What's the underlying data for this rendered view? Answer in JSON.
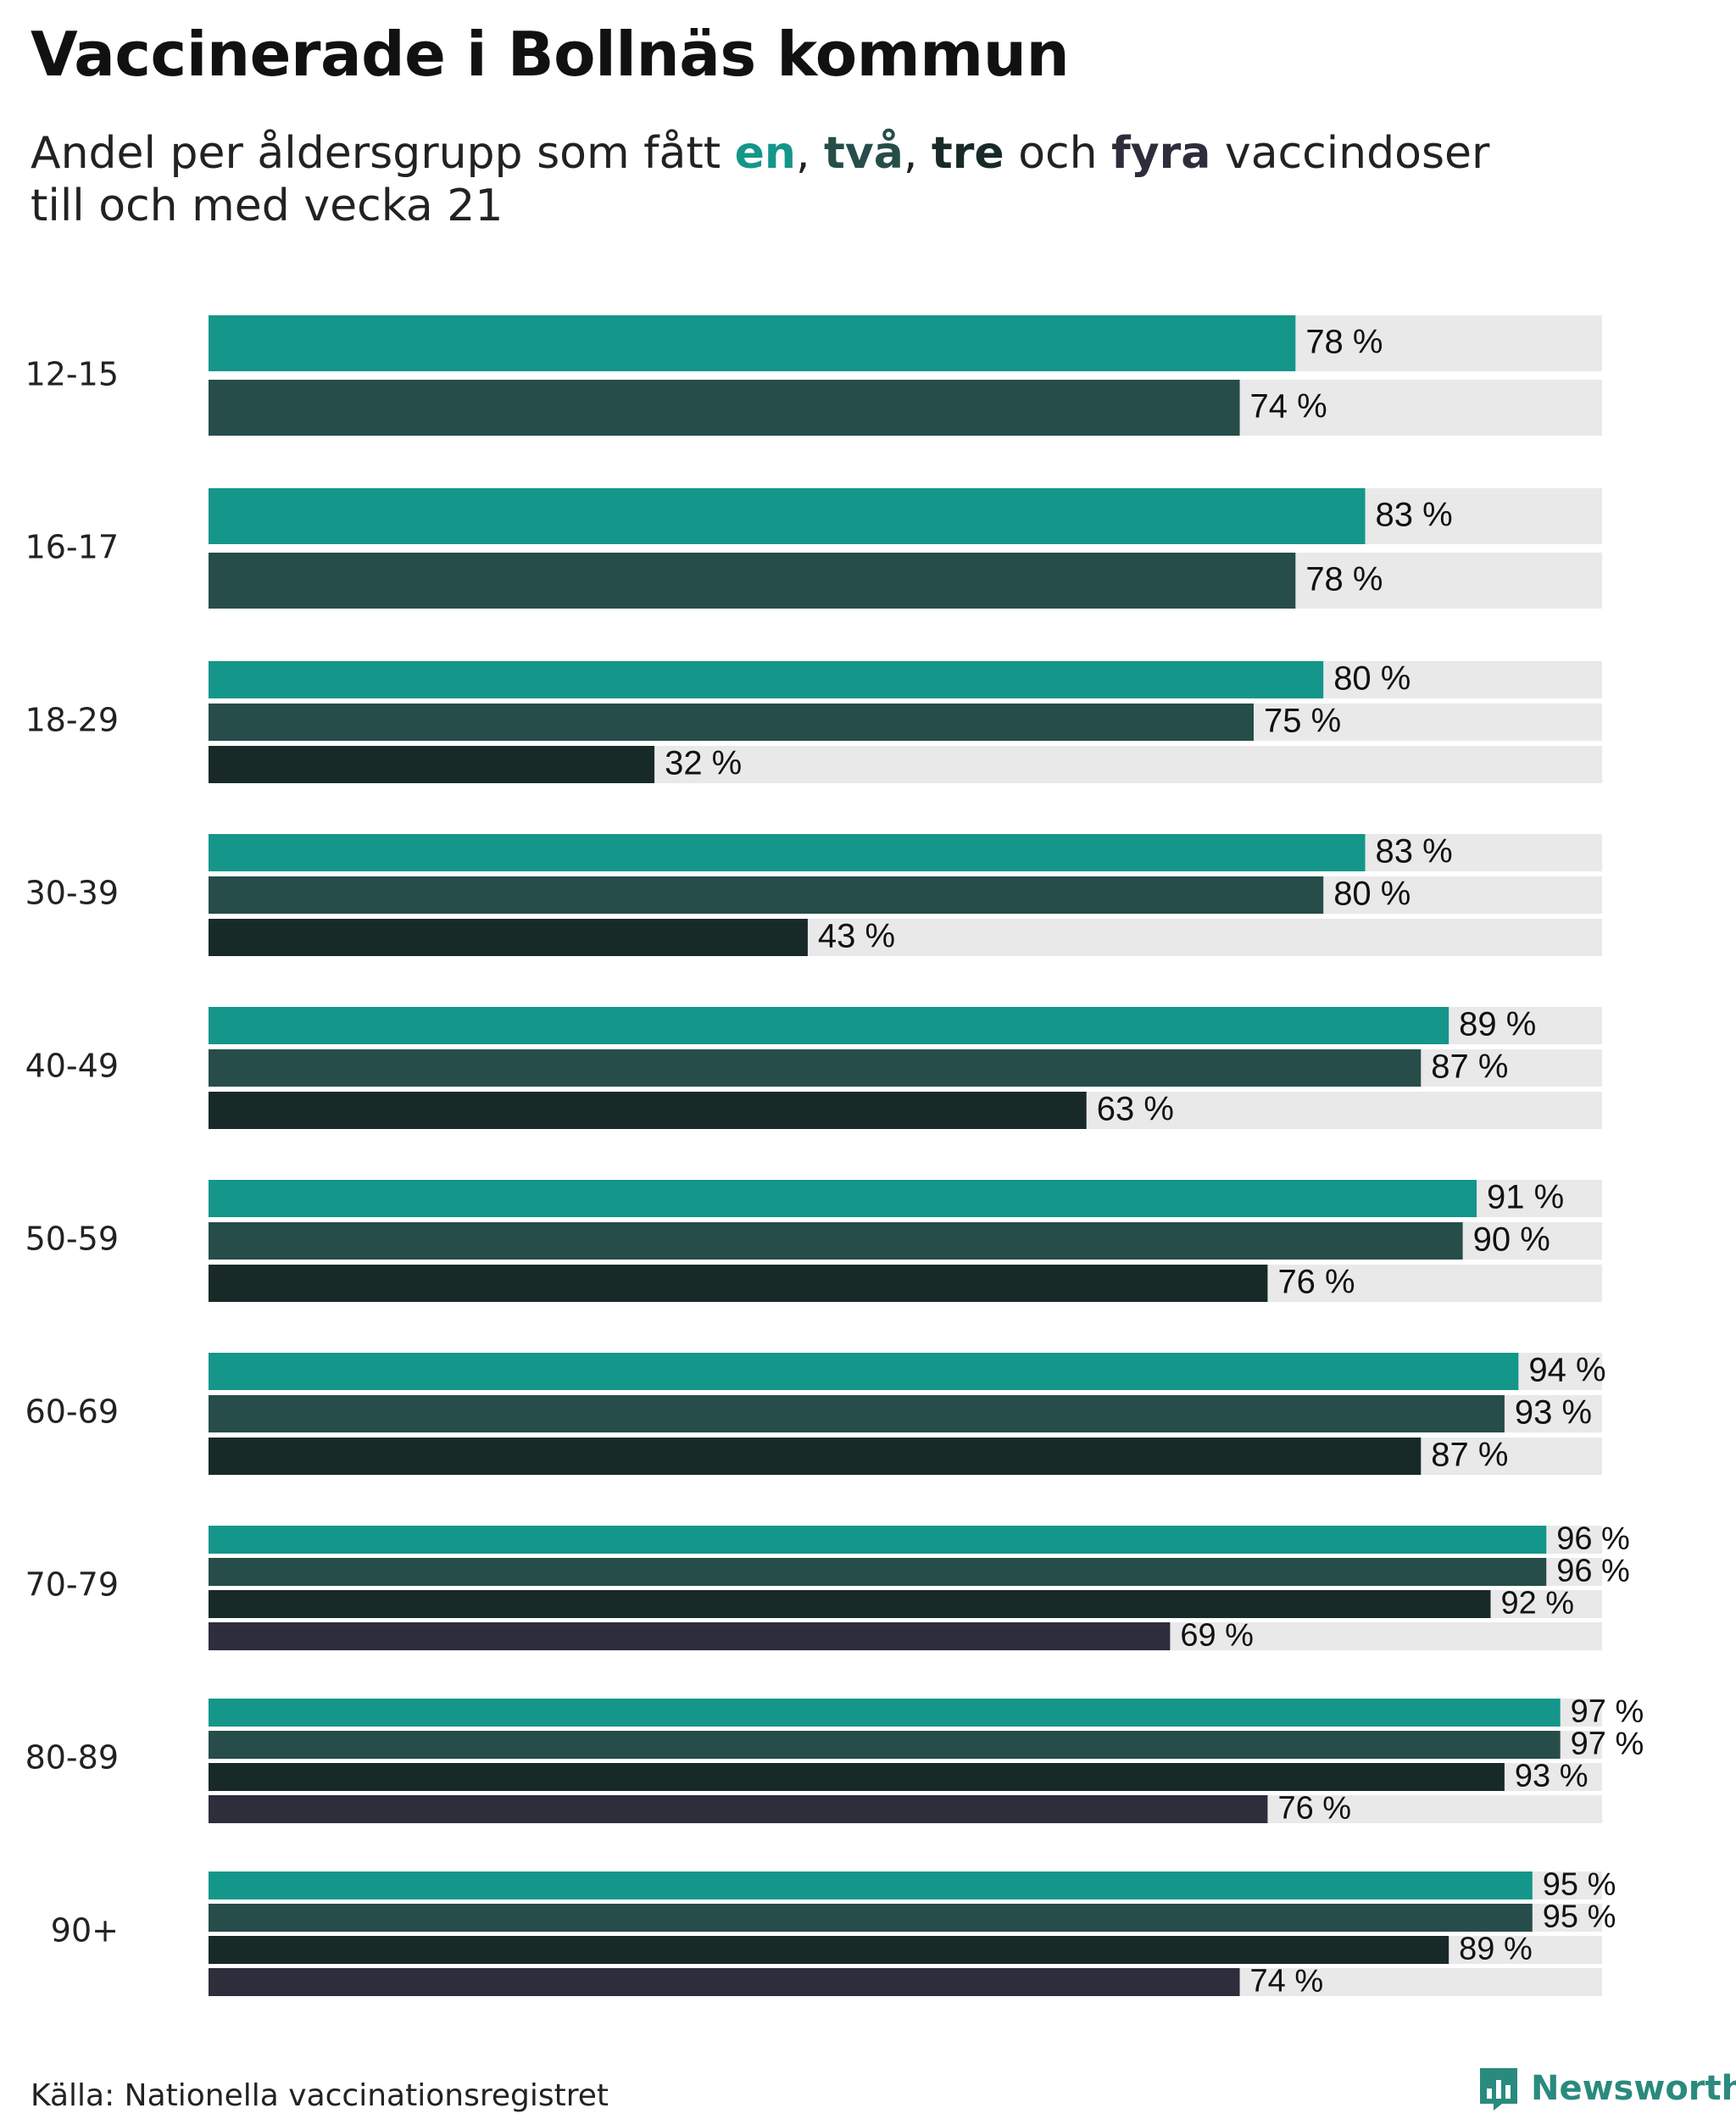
{
  "title": "Vaccinerade i Bollnäs kommun",
  "subtitle": {
    "prefix": "Andel per åldersgrupp som fått ",
    "dose1": "en",
    "sep1": ", ",
    "dose2": "två",
    "sep2": ", ",
    "dose3": "tre",
    "sep3": " och ",
    "dose4": "fyra",
    "suffix": " vaccindoser",
    "line2": "till och med vecka 21"
  },
  "source": "Källa: Nationella vaccinationsregistret",
  "logo": {
    "text": "Newsworthy",
    "icon": "newsworthy-logo-icon"
  },
  "colors": {
    "dose1": "#14968a",
    "dose2": "#264d4a",
    "dose3": "#182a28",
    "dose4": "#2d2d3b",
    "track": "#e9e9e9",
    "logo": "#2a8a7e"
  },
  "chart_data": {
    "type": "bar",
    "orientation": "horizontal",
    "value_suffix": " %",
    "xlim": [
      0,
      100
    ],
    "grid": false,
    "categories": [
      "12-15",
      "16-17",
      "18-29",
      "30-39",
      "40-49",
      "50-59",
      "60-69",
      "70-79",
      "80-89",
      "90+"
    ],
    "series": [
      {
        "name": "en",
        "values": [
          78,
          83,
          80,
          83,
          89,
          91,
          94,
          96,
          97,
          95
        ]
      },
      {
        "name": "två",
        "values": [
          74,
          78,
          75,
          80,
          87,
          90,
          93,
          96,
          97,
          95
        ]
      },
      {
        "name": "tre",
        "values": [
          null,
          null,
          32,
          43,
          63,
          76,
          87,
          92,
          93,
          89
        ]
      },
      {
        "name": "fyra",
        "values": [
          null,
          null,
          null,
          null,
          null,
          null,
          null,
          69,
          76,
          74
        ]
      }
    ]
  }
}
